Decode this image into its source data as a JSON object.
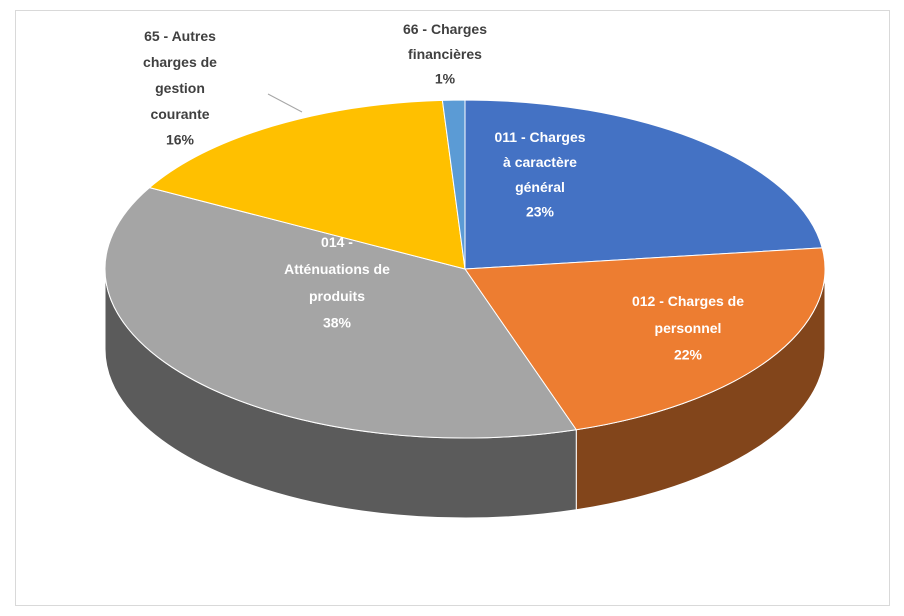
{
  "chart_data": {
    "type": "pie3d",
    "categories": [
      "011 - Charges à caractère général",
      "012 - Charges de personnel",
      "014 - Atténuations de produits",
      "65 - Autres charges de gestion courante",
      "66 - Charges financières"
    ],
    "values": [
      23,
      22,
      38,
      16,
      1
    ],
    "value_labels": [
      "23%",
      "22%",
      "38%",
      "16%",
      "1%"
    ],
    "colors": [
      "#4472c4",
      "#ed7d31",
      "#a5a5a5",
      "#ffc000",
      "#5b9bd5"
    ]
  }
}
